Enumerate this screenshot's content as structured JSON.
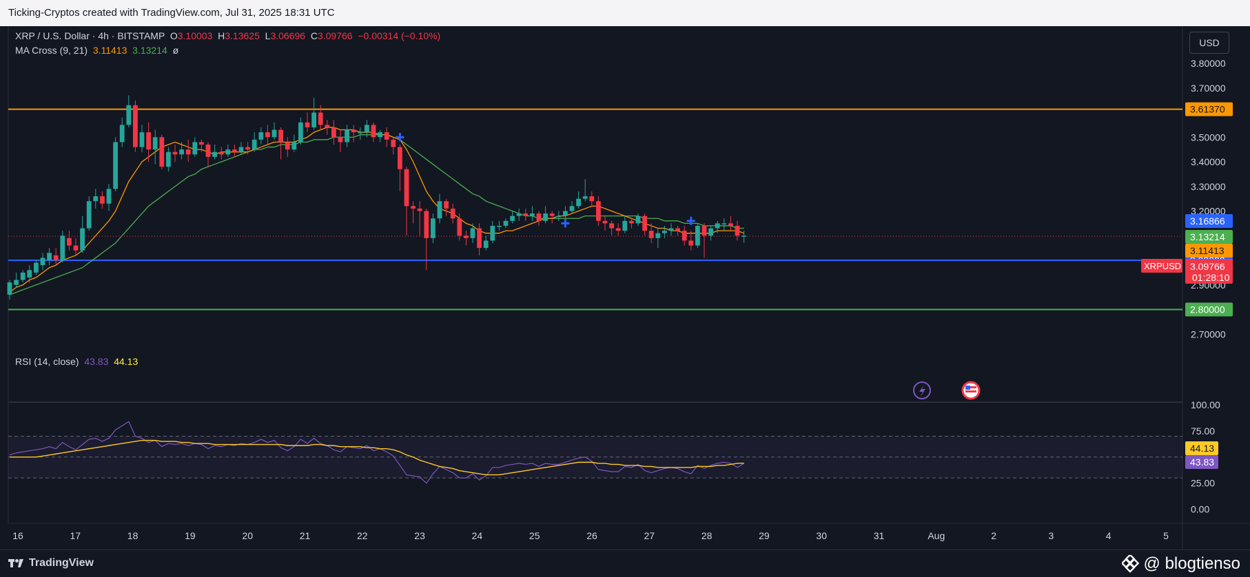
{
  "header": {
    "text": "Ticking-Cryptos created with TradingView.com, Jul 31, 2025 18:31 UTC"
  },
  "legend": {
    "symbol": "XRP / U.S. Dollar · 4h · BITSTAMP",
    "o_label": "O",
    "o": "3.10003",
    "h_label": "H",
    "h": "3.13625",
    "l_label": "L",
    "l": "3.06696",
    "c_label": "C",
    "c": "3.09766",
    "change": "−0.00314 (−0.10%)",
    "ma_title": "MA Cross (9, 21)",
    "ma_fast": "3.11413",
    "ma_slow": "3.13214",
    "ma_icon": "ø",
    "rsi_title": "RSI (14, close)",
    "rsi_value": "43.83",
    "rsi_ma": "44.13"
  },
  "currency_button": "USD",
  "footer": {
    "brand": "TradingView",
    "credit": "@ blogtienso"
  },
  "colors": {
    "up": "#26a69a",
    "down": "#f23645",
    "ma_fast": "#ff9800",
    "ma_slow": "#4caf50",
    "rsi": "#7e57c2",
    "rsi_ma": "#ffca28",
    "resistance": "#ff9800",
    "support": "#2962ff",
    "support2": "#4caf50",
    "background": "#131722"
  },
  "chart_data": {
    "type": "candlestick",
    "price_axis": {
      "ticks": [
        "3.80000",
        "3.70000",
        "3.60000",
        "3.50000",
        "3.40000",
        "3.30000",
        "3.20000",
        "3.10000",
        "3.00000",
        "2.90000",
        "2.80000",
        "2.70000"
      ],
      "range": [
        2.66,
        3.87
      ]
    },
    "x_axis": {
      "ticks": [
        "16",
        "17",
        "18",
        "19",
        "20",
        "21",
        "22",
        "23",
        "24",
        "25",
        "26",
        "27",
        "28",
        "29",
        "30",
        "31",
        "Aug",
        "2",
        "3",
        "4",
        "5"
      ]
    },
    "horizontal_lines": [
      {
        "label": "3.61370",
        "value": 3.6137,
        "color": "#ff9800"
      },
      {
        "label": "3.00000",
        "value": 3.0,
        "color": "#2962ff"
      },
      {
        "label": "2.80000",
        "value": 2.8,
        "color": "#4caf50"
      }
    ],
    "price_labels": [
      {
        "label": "3.16866",
        "value": 3.16866,
        "color": "#2962ff"
      },
      {
        "label": "3.13214",
        "value": 3.13214,
        "color": "#4caf50"
      },
      {
        "label": "3.11413",
        "value": 3.11413,
        "color": "#ff9800"
      },
      {
        "label": "3.09766",
        "value": 3.09766,
        "color": "#f23645",
        "symbol": "XRPUSD",
        "countdown": "01:28:10"
      }
    ],
    "last_price": 3.09766,
    "candles": [
      [
        2.86,
        2.91,
        2.84,
        2.92
      ],
      [
        2.9,
        2.92,
        2.89,
        2.95
      ],
      [
        2.92,
        2.95,
        2.91,
        2.96
      ],
      [
        2.93,
        2.96,
        2.91,
        2.98
      ],
      [
        2.95,
        2.99,
        2.94,
        3.0
      ],
      [
        2.98,
        3.01,
        2.96,
        3.03
      ],
      [
        3.0,
        3.03,
        2.98,
        3.05
      ],
      [
        3.02,
        3.0,
        2.98,
        3.05
      ],
      [
        3.0,
        3.1,
        2.99,
        3.12
      ],
      [
        3.09,
        3.06,
        3.04,
        3.12
      ],
      [
        3.06,
        3.04,
        3.02,
        3.09
      ],
      [
        3.04,
        3.13,
        3.03,
        3.18
      ],
      [
        3.13,
        3.24,
        3.12,
        3.26
      ],
      [
        3.24,
        3.26,
        3.21,
        3.29
      ],
      [
        3.26,
        3.23,
        3.21,
        3.28
      ],
      [
        3.23,
        3.29,
        3.2,
        3.31
      ],
      [
        3.29,
        3.48,
        3.28,
        3.5
      ],
      [
        3.48,
        3.55,
        3.46,
        3.58
      ],
      [
        3.55,
        3.63,
        3.54,
        3.67
      ],
      [
        3.63,
        3.46,
        3.44,
        3.65
      ],
      [
        3.46,
        3.52,
        3.44,
        3.55
      ],
      [
        3.52,
        3.45,
        3.4,
        3.56
      ],
      [
        3.45,
        3.5,
        3.39,
        3.53
      ],
      [
        3.5,
        3.38,
        3.37,
        3.51
      ],
      [
        3.38,
        3.44,
        3.36,
        3.46
      ],
      [
        3.44,
        3.43,
        3.4,
        3.47
      ],
      [
        3.43,
        3.45,
        3.41,
        3.48
      ],
      [
        3.45,
        3.43,
        3.4,
        3.49
      ],
      [
        3.43,
        3.48,
        3.42,
        3.5
      ],
      [
        3.48,
        3.47,
        3.44,
        3.49
      ],
      [
        3.47,
        3.42,
        3.38,
        3.48
      ],
      [
        3.42,
        3.44,
        3.41,
        3.47
      ],
      [
        3.44,
        3.43,
        3.41,
        3.46
      ],
      [
        3.43,
        3.45,
        3.42,
        3.47
      ],
      [
        3.45,
        3.44,
        3.42,
        3.47
      ],
      [
        3.44,
        3.46,
        3.43,
        3.48
      ],
      [
        3.46,
        3.45,
        3.43,
        3.48
      ],
      [
        3.45,
        3.49,
        3.44,
        3.52
      ],
      [
        3.49,
        3.52,
        3.47,
        3.54
      ],
      [
        3.52,
        3.5,
        3.47,
        3.55
      ],
      [
        3.5,
        3.53,
        3.49,
        3.56
      ],
      [
        3.53,
        3.48,
        3.41,
        3.54
      ],
      [
        3.48,
        3.45,
        3.42,
        3.5
      ],
      [
        3.45,
        3.48,
        3.44,
        3.51
      ],
      [
        3.48,
        3.56,
        3.47,
        3.58
      ],
      [
        3.56,
        3.54,
        3.52,
        3.6
      ],
      [
        3.54,
        3.6,
        3.53,
        3.66
      ],
      [
        3.6,
        3.55,
        3.53,
        3.63
      ],
      [
        3.55,
        3.54,
        3.51,
        3.57
      ],
      [
        3.54,
        3.5,
        3.47,
        3.57
      ],
      [
        3.5,
        3.48,
        3.44,
        3.53
      ],
      [
        3.48,
        3.53,
        3.46,
        3.55
      ],
      [
        3.53,
        3.52,
        3.48,
        3.55
      ],
      [
        3.52,
        3.52,
        3.49,
        3.54
      ],
      [
        3.52,
        3.55,
        3.5,
        3.57
      ],
      [
        3.55,
        3.5,
        3.48,
        3.56
      ],
      [
        3.5,
        3.52,
        3.48,
        3.53
      ],
      [
        3.52,
        3.49,
        3.46,
        3.54
      ],
      [
        3.49,
        3.46,
        3.43,
        3.5
      ],
      [
        3.46,
        3.37,
        3.28,
        3.47
      ],
      [
        3.37,
        3.22,
        3.1,
        3.38
      ],
      [
        3.22,
        3.21,
        3.15,
        3.24
      ],
      [
        3.21,
        3.2,
        3.1,
        3.24
      ],
      [
        3.2,
        3.09,
        2.96,
        3.21
      ],
      [
        3.09,
        3.17,
        3.07,
        3.19
      ],
      [
        3.17,
        3.24,
        3.15,
        3.27
      ],
      [
        3.24,
        3.21,
        3.18,
        3.25
      ],
      [
        3.21,
        3.17,
        3.15,
        3.23
      ],
      [
        3.17,
        3.1,
        3.08,
        3.19
      ],
      [
        3.1,
        3.09,
        3.06,
        3.12
      ],
      [
        3.09,
        3.13,
        3.07,
        3.15
      ],
      [
        3.13,
        3.05,
        3.02,
        3.15
      ],
      [
        3.05,
        3.08,
        3.04,
        3.1
      ],
      [
        3.08,
        3.14,
        3.07,
        3.16
      ],
      [
        3.14,
        3.14,
        3.12,
        3.16
      ],
      [
        3.14,
        3.16,
        3.13,
        3.17
      ],
      [
        3.16,
        3.18,
        3.15,
        3.2
      ],
      [
        3.18,
        3.19,
        3.16,
        3.21
      ],
      [
        3.19,
        3.18,
        3.16,
        3.21
      ],
      [
        3.18,
        3.19,
        3.16,
        3.22
      ],
      [
        3.19,
        3.16,
        3.14,
        3.2
      ],
      [
        3.16,
        3.19,
        3.15,
        3.22
      ],
      [
        3.19,
        3.18,
        3.15,
        3.2
      ],
      [
        3.18,
        3.18,
        3.16,
        3.2
      ],
      [
        3.18,
        3.2,
        3.17,
        3.22
      ],
      [
        3.2,
        3.22,
        3.19,
        3.24
      ],
      [
        3.22,
        3.25,
        3.21,
        3.28
      ],
      [
        3.25,
        3.26,
        3.24,
        3.33
      ],
      [
        3.26,
        3.24,
        3.22,
        3.28
      ],
      [
        3.24,
        3.16,
        3.14,
        3.26
      ],
      [
        3.16,
        3.15,
        3.12,
        3.18
      ],
      [
        3.15,
        3.13,
        3.1,
        3.16
      ],
      [
        3.13,
        3.12,
        3.1,
        3.15
      ],
      [
        3.12,
        3.16,
        3.11,
        3.18
      ],
      [
        3.16,
        3.15,
        3.13,
        3.17
      ],
      [
        3.15,
        3.18,
        3.14,
        3.19
      ],
      [
        3.18,
        3.12,
        3.1,
        3.19
      ],
      [
        3.12,
        3.09,
        3.07,
        3.15
      ],
      [
        3.09,
        3.11,
        3.05,
        3.13
      ],
      [
        3.11,
        3.12,
        3.09,
        3.14
      ],
      [
        3.12,
        3.13,
        3.1,
        3.15
      ],
      [
        3.13,
        3.12,
        3.1,
        3.14
      ],
      [
        3.12,
        3.08,
        3.06,
        3.14
      ],
      [
        3.08,
        3.06,
        3.04,
        3.12
      ],
      [
        3.06,
        3.14,
        3.05,
        3.15
      ],
      [
        3.14,
        3.1,
        3.01,
        3.15
      ],
      [
        3.1,
        3.13,
        3.08,
        3.14
      ],
      [
        3.13,
        3.15,
        3.11,
        3.16
      ],
      [
        3.15,
        3.15,
        3.12,
        3.17
      ],
      [
        3.15,
        3.14,
        3.12,
        3.18
      ],
      [
        3.14,
        3.1,
        3.08,
        3.16
      ],
      [
        3.1,
        3.1,
        3.07,
        3.12
      ]
    ],
    "ma_fast": [
      2.87,
      2.89,
      2.9,
      2.92,
      2.93,
      2.95,
      2.97,
      2.98,
      3.0,
      3.01,
      3.02,
      3.04,
      3.07,
      3.1,
      3.13,
      3.16,
      3.2,
      3.26,
      3.32,
      3.36,
      3.4,
      3.42,
      3.44,
      3.46,
      3.47,
      3.48,
      3.47,
      3.46,
      3.45,
      3.45,
      3.44,
      3.43,
      3.44,
      3.44,
      3.44,
      3.44,
      3.44,
      3.45,
      3.46,
      3.47,
      3.48,
      3.48,
      3.48,
      3.48,
      3.49,
      3.5,
      3.52,
      3.53,
      3.54,
      3.54,
      3.53,
      3.53,
      3.53,
      3.52,
      3.52,
      3.52,
      3.51,
      3.51,
      3.5,
      3.49,
      3.45,
      3.4,
      3.34,
      3.28,
      3.24,
      3.21,
      3.2,
      3.19,
      3.17,
      3.15,
      3.14,
      3.12,
      3.11,
      3.11,
      3.11,
      3.12,
      3.12,
      3.13,
      3.14,
      3.15,
      3.16,
      3.17,
      3.17,
      3.18,
      3.18,
      3.19,
      3.2,
      3.21,
      3.22,
      3.22,
      3.21,
      3.2,
      3.19,
      3.18,
      3.17,
      3.16,
      3.15,
      3.14,
      3.13,
      3.13,
      3.12,
      3.12,
      3.11,
      3.11,
      3.11,
      3.11,
      3.11,
      3.12,
      3.12,
      3.12,
      3.12,
      3.11
    ],
    "ma_slow": [
      2.86,
      2.87,
      2.88,
      2.89,
      2.9,
      2.91,
      2.92,
      2.93,
      2.94,
      2.95,
      2.96,
      2.97,
      2.99,
      3.01,
      3.03,
      3.05,
      3.07,
      3.1,
      3.13,
      3.16,
      3.19,
      3.22,
      3.24,
      3.26,
      3.28,
      3.3,
      3.32,
      3.34,
      3.35,
      3.37,
      3.38,
      3.39,
      3.4,
      3.41,
      3.42,
      3.43,
      3.44,
      3.45,
      3.45,
      3.46,
      3.46,
      3.47,
      3.47,
      3.47,
      3.48,
      3.48,
      3.49,
      3.49,
      3.49,
      3.5,
      3.5,
      3.5,
      3.5,
      3.51,
      3.51,
      3.51,
      3.51,
      3.51,
      3.5,
      3.49,
      3.47,
      3.45,
      3.43,
      3.41,
      3.39,
      3.37,
      3.35,
      3.33,
      3.31,
      3.29,
      3.27,
      3.26,
      3.24,
      3.23,
      3.22,
      3.21,
      3.2,
      3.19,
      3.18,
      3.18,
      3.17,
      3.17,
      3.17,
      3.17,
      3.17,
      3.17,
      3.17,
      3.18,
      3.18,
      3.18,
      3.18,
      3.18,
      3.18,
      3.18,
      3.18,
      3.18,
      3.17,
      3.17,
      3.17,
      3.16,
      3.16,
      3.16,
      3.15,
      3.15,
      3.15,
      3.14,
      3.14,
      3.14,
      3.14,
      3.14,
      3.13,
      3.13
    ],
    "rsi": {
      "ticks": [
        "100.00",
        "75.00",
        "50.00",
        "25.00",
        "0.00"
      ],
      "bands": [
        70,
        50,
        30
      ],
      "rsi_values": [
        52,
        54,
        55,
        56,
        57,
        58,
        60,
        58,
        64,
        60,
        57,
        62,
        67,
        68,
        65,
        68,
        76,
        80,
        84,
        70,
        68,
        64,
        66,
        60,
        63,
        62,
        63,
        61,
        63,
        62,
        58,
        61,
        60,
        62,
        61,
        63,
        62,
        64,
        67,
        64,
        66,
        59,
        56,
        60,
        67,
        63,
        68,
        63,
        61,
        57,
        55,
        60,
        59,
        58,
        61,
        56,
        58,
        55,
        51,
        42,
        33,
        32,
        31,
        25,
        34,
        41,
        38,
        35,
        30,
        30,
        34,
        28,
        32,
        40,
        40,
        42,
        43,
        44,
        43,
        44,
        41,
        44,
        43,
        43,
        45,
        47,
        49,
        50,
        46,
        38,
        37,
        36,
        36,
        41,
        40,
        43,
        37,
        35,
        37,
        39,
        40,
        39,
        36,
        34,
        42,
        39,
        42,
        44,
        45,
        44,
        40,
        43.83
      ],
      "rsi_ma_values": [
        50,
        50,
        50,
        50,
        50,
        51,
        52,
        53,
        54,
        55,
        56,
        57,
        58,
        59,
        60,
        61,
        62,
        63,
        64,
        65,
        66,
        66,
        66,
        65,
        65,
        65,
        64,
        64,
        63,
        63,
        63,
        62,
        62,
        62,
        62,
        62,
        62,
        62,
        62,
        62,
        62,
        62,
        61,
        61,
        61,
        61,
        62,
        62,
        61,
        61,
        60,
        60,
        60,
        60,
        59,
        59,
        58,
        58,
        57,
        55,
        52,
        50,
        47,
        45,
        43,
        41,
        40,
        39,
        37,
        36,
        35,
        34,
        33,
        33,
        33,
        34,
        35,
        36,
        37,
        38,
        39,
        40,
        41,
        42,
        43,
        44,
        45,
        45,
        45,
        44,
        44,
        43,
        43,
        42,
        42,
        42,
        41,
        41,
        40,
        40,
        40,
        40,
        40,
        40,
        41,
        41,
        41,
        42,
        42,
        43,
        44,
        44.13
      ]
    }
  }
}
